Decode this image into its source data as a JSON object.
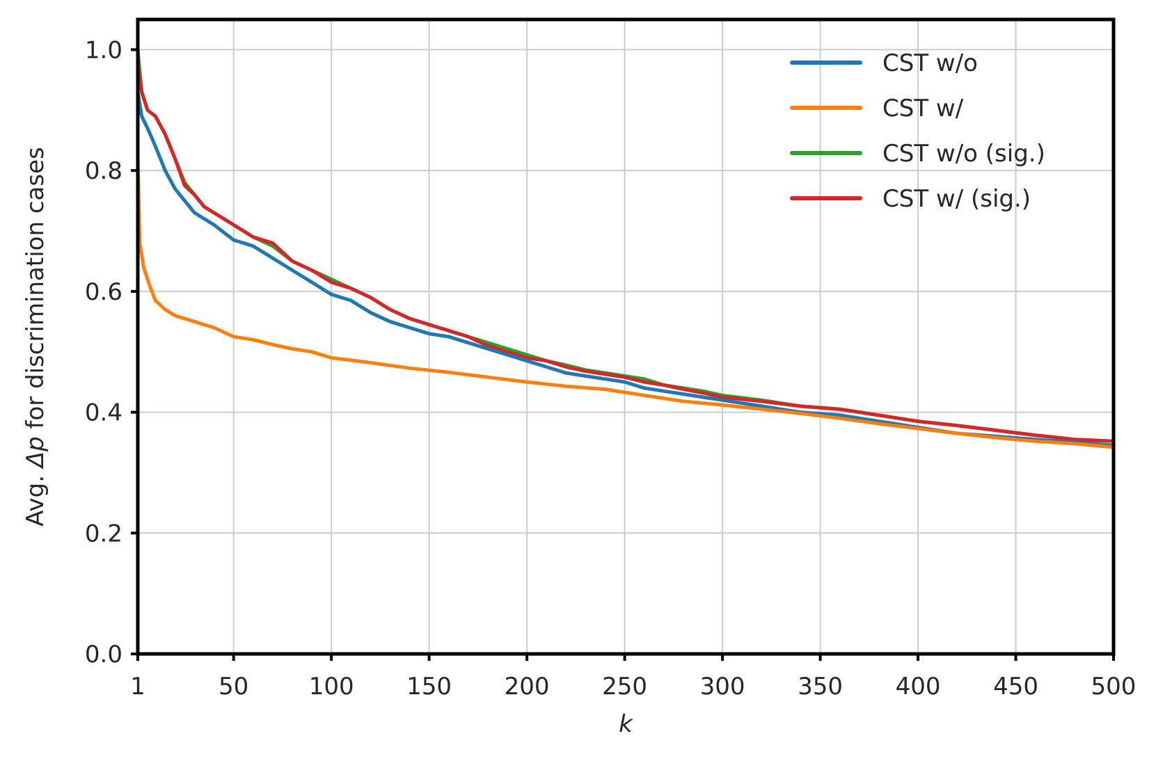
{
  "chart_data": {
    "type": "line",
    "xlabel": "k",
    "ylabel_prefix": "Avg. ",
    "ylabel_symbol": "Δp",
    "ylabel_suffix": " for discrimination cases",
    "xlim": [
      1,
      500
    ],
    "ylim": [
      0,
      1.05
    ],
    "xticks": [
      1,
      50,
      100,
      150,
      200,
      250,
      300,
      350,
      400,
      450,
      500
    ],
    "xtick_labels": [
      "1",
      "50",
      "100",
      "150",
      "200",
      "250",
      "300",
      "350",
      "400",
      "450",
      "500"
    ],
    "yticks": [
      0,
      0.2,
      0.4,
      0.6,
      0.8,
      1.0
    ],
    "ytick_labels": [
      "0.0",
      "0.2",
      "0.4",
      "0.6",
      "0.8",
      "1.0"
    ],
    "grid": true,
    "legend_position": "top-right",
    "series": [
      {
        "name": "CST w/o",
        "color": "#1f77b4",
        "x": [
          1,
          3,
          6,
          10,
          15,
          20,
          25,
          30,
          35,
          40,
          50,
          60,
          70,
          80,
          90,
          100,
          110,
          120,
          130,
          140,
          150,
          160,
          170,
          180,
          190,
          200,
          210,
          220,
          230,
          240,
          250,
          260,
          270,
          280,
          290,
          300,
          320,
          340,
          360,
          380,
          400,
          420,
          440,
          460,
          480,
          500
        ],
        "y": [
          0.93,
          0.89,
          0.87,
          0.84,
          0.8,
          0.77,
          0.75,
          0.73,
          0.72,
          0.71,
          0.685,
          0.675,
          0.655,
          0.635,
          0.615,
          0.595,
          0.585,
          0.565,
          0.55,
          0.54,
          0.53,
          0.525,
          0.515,
          0.505,
          0.495,
          0.485,
          0.475,
          0.465,
          0.46,
          0.455,
          0.45,
          0.44,
          0.435,
          0.43,
          0.425,
          0.42,
          0.41,
          0.4,
          0.395,
          0.385,
          0.375,
          0.365,
          0.36,
          0.355,
          0.35,
          0.345
        ]
      },
      {
        "name": "CST w/",
        "color": "#ff7f0e",
        "x": [
          1,
          2,
          4,
          7,
          10,
          15,
          20,
          30,
          40,
          50,
          60,
          70,
          80,
          90,
          100,
          120,
          140,
          160,
          180,
          200,
          220,
          240,
          260,
          280,
          300,
          320,
          340,
          360,
          380,
          400,
          420,
          440,
          460,
          480,
          500
        ],
        "y": [
          0.82,
          0.68,
          0.64,
          0.61,
          0.585,
          0.57,
          0.56,
          0.55,
          0.54,
          0.525,
          0.52,
          0.512,
          0.505,
          0.5,
          0.49,
          0.482,
          0.473,
          0.466,
          0.458,
          0.45,
          0.443,
          0.438,
          0.428,
          0.418,
          0.412,
          0.405,
          0.398,
          0.39,
          0.381,
          0.373,
          0.365,
          0.358,
          0.352,
          0.348,
          0.342
        ]
      },
      {
        "name": "CST w/o (sig.)",
        "color": "#2ca02c",
        "x": [
          1,
          3,
          6,
          10,
          15,
          20,
          25,
          30,
          35,
          40,
          50,
          60,
          70,
          80,
          90,
          100,
          110,
          120,
          130,
          140,
          150,
          160,
          170,
          180,
          190,
          200,
          210,
          220,
          230,
          240,
          250,
          260,
          270,
          280,
          290,
          300,
          320,
          340,
          360,
          380,
          400,
          420,
          440,
          460,
          480,
          500
        ],
        "y": [
          1.0,
          0.93,
          0.9,
          0.89,
          0.86,
          0.82,
          0.78,
          0.76,
          0.74,
          0.73,
          0.71,
          0.69,
          0.675,
          0.65,
          0.635,
          0.62,
          0.605,
          0.59,
          0.57,
          0.555,
          0.545,
          0.535,
          0.525,
          0.515,
          0.505,
          0.495,
          0.485,
          0.478,
          0.47,
          0.465,
          0.46,
          0.455,
          0.445,
          0.44,
          0.435,
          0.428,
          0.42,
          0.41,
          0.405,
          0.395,
          0.385,
          0.378,
          0.37,
          0.362,
          0.355,
          0.352
        ]
      },
      {
        "name": "CST w/ (sig.)",
        "color": "#d62728",
        "x": [
          1,
          3,
          6,
          10,
          15,
          20,
          25,
          30,
          35,
          40,
          50,
          60,
          70,
          80,
          90,
          100,
          110,
          120,
          130,
          140,
          150,
          160,
          170,
          180,
          190,
          200,
          210,
          220,
          230,
          240,
          250,
          260,
          270,
          280,
          290,
          300,
          320,
          340,
          360,
          380,
          400,
          420,
          440,
          460,
          480,
          500
        ],
        "y": [
          0.98,
          0.93,
          0.9,
          0.89,
          0.86,
          0.82,
          0.775,
          0.76,
          0.74,
          0.73,
          0.71,
          0.69,
          0.68,
          0.65,
          0.635,
          0.615,
          0.605,
          0.59,
          0.57,
          0.555,
          0.545,
          0.535,
          0.525,
          0.51,
          0.5,
          0.49,
          0.485,
          0.475,
          0.468,
          0.463,
          0.458,
          0.45,
          0.445,
          0.438,
          0.432,
          0.425,
          0.418,
          0.41,
          0.405,
          0.395,
          0.385,
          0.378,
          0.37,
          0.362,
          0.355,
          0.352
        ]
      }
    ]
  }
}
